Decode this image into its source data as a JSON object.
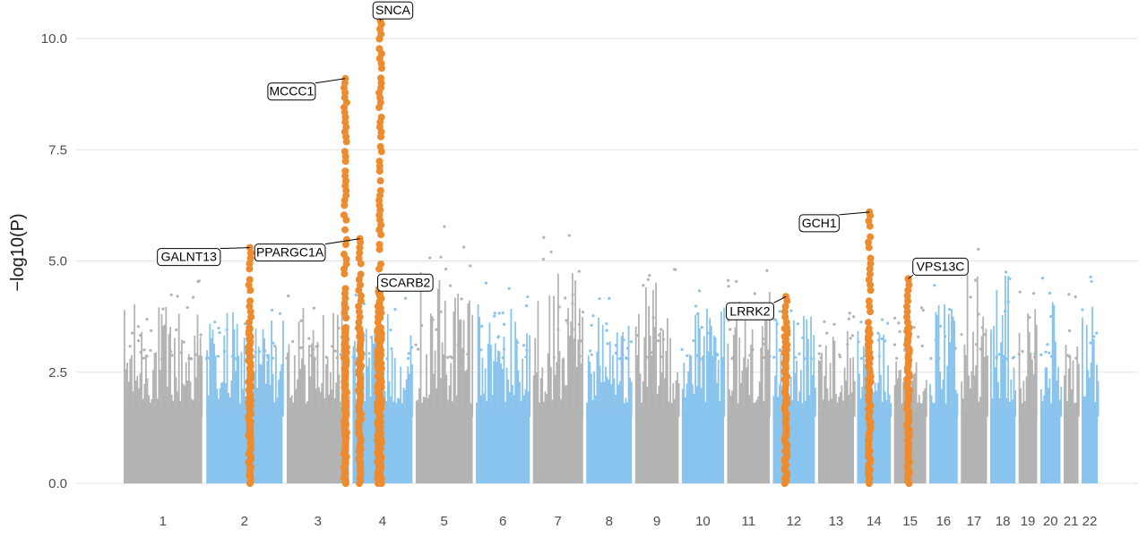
{
  "chart_data": {
    "type": "scatter",
    "subtype": "manhattan",
    "title": "",
    "xlabel": "",
    "ylabel": "−log10(P)",
    "ylim": [
      0,
      10.5
    ],
    "yticks": [
      "0.0",
      "2.5",
      "5.0",
      "7.5",
      "10.0"
    ],
    "grid": true,
    "legend": "none",
    "colors": {
      "odd_chromosome": "#b3b3b3",
      "even_chromosome": "#89c4ee",
      "highlight": "#ed8b2e",
      "grid": "#e3e3e3"
    },
    "chromosomes": [
      {
        "label": "1",
        "x_start": 0,
        "x_end": 249,
        "max_neg_log10p": 4.6
      },
      {
        "label": "2",
        "x_start": 262,
        "x_end": 504,
        "max_neg_log10p": 4.3
      },
      {
        "label": "3",
        "x_start": 517,
        "x_end": 715,
        "max_neg_log10p": 4.6
      },
      {
        "label": "4",
        "x_start": 726,
        "x_end": 916,
        "max_neg_log10p": 4.3
      },
      {
        "label": "5",
        "x_start": 926,
        "x_end": 1107,
        "max_neg_log10p": 5.8
      },
      {
        "label": "6",
        "x_start": 1117,
        "x_end": 1288,
        "max_neg_log10p": 4.6
      },
      {
        "label": "7",
        "x_start": 1298,
        "x_end": 1457,
        "max_neg_log10p": 5.6
      },
      {
        "label": "8",
        "x_start": 1467,
        "x_end": 1612,
        "max_neg_log10p": 4.2
      },
      {
        "label": "9",
        "x_start": 1622,
        "x_end": 1760,
        "max_neg_log10p": 5.2
      },
      {
        "label": "10",
        "x_start": 1770,
        "x_end": 1904,
        "max_neg_log10p": 4.4
      },
      {
        "label": "11",
        "x_start": 1914,
        "x_end": 2049,
        "max_neg_log10p": 4.9
      },
      {
        "label": "12",
        "x_start": 2059,
        "x_end": 2192,
        "max_neg_log10p": 4.2
      },
      {
        "label": "13",
        "x_start": 2202,
        "x_end": 2316,
        "max_neg_log10p": 3.9
      },
      {
        "label": "14",
        "x_start": 2326,
        "x_end": 2433,
        "max_neg_log10p": 3.8
      },
      {
        "label": "15",
        "x_start": 2443,
        "x_end": 2545,
        "max_neg_log10p": 4.1
      },
      {
        "label": "16",
        "x_start": 2555,
        "x_end": 2645,
        "max_neg_log10p": 4.5
      },
      {
        "label": "17",
        "x_start": 2655,
        "x_end": 2738,
        "max_neg_log10p": 5.9
      },
      {
        "label": "18",
        "x_start": 2748,
        "x_end": 2828,
        "max_neg_log10p": 5.4
      },
      {
        "label": "19",
        "x_start": 2838,
        "x_end": 2897,
        "max_neg_log10p": 4.4
      },
      {
        "label": "20",
        "x_start": 2907,
        "x_end": 2971,
        "max_neg_log10p": 4.7
      },
      {
        "label": "21",
        "x_start": 2981,
        "x_end": 3028,
        "max_neg_log10p": 4.4
      },
      {
        "label": "22",
        "x_start": 3038,
        "x_end": 3089,
        "max_neg_log10p": 4.8
      }
    ],
    "highlighted_loci": [
      {
        "gene": "GALNT13",
        "chromosome": "2",
        "x": 400,
        "peak": 5.3
      },
      {
        "gene": "MCCC1",
        "chromosome": "3",
        "x": 703,
        "peak": 9.1
      },
      {
        "gene": "PPARGC1A",
        "chromosome": "4",
        "x": 749,
        "peak": 5.5
      },
      {
        "gene": "SNCA",
        "chromosome": "4",
        "x": 814,
        "peak": 10.4
      },
      {
        "gene": "SCARB2",
        "chromosome": "4",
        "x": 808,
        "peak": 4.3
      },
      {
        "gene": "LRRK2",
        "chromosome": "12",
        "x": 2100,
        "peak": 4.2
      },
      {
        "gene": "GCH1",
        "chromosome": "14",
        "x": 2365,
        "peak": 6.1
      },
      {
        "gene": "VPS13C",
        "chromosome": "15",
        "x": 2488,
        "peak": 4.6
      }
    ]
  }
}
